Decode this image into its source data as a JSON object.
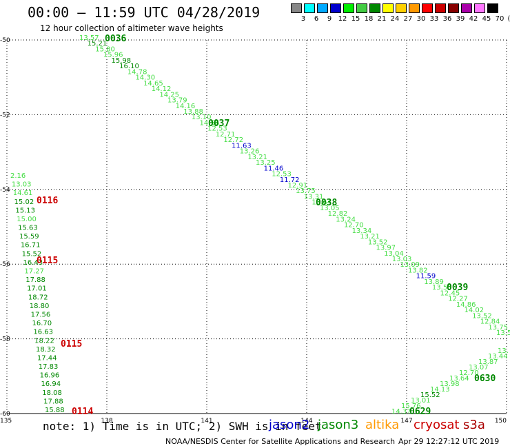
{
  "header": {
    "title": "00:00 — 11:59 UTC 04/28/2019",
    "subtitle": "12 hour collection of altimeter wave heights"
  },
  "legend": {
    "values": [
      "3",
      "6",
      "9",
      "12",
      "15",
      "18",
      "21",
      "24",
      "27",
      "30",
      "33",
      "36",
      "39",
      "42",
      "45",
      "70",
      "(ft)"
    ],
    "colors": [
      "#888888",
      "#00ffff",
      "#00aaff",
      "#0000cc",
      "#00ee00",
      "#44cc44",
      "#008800",
      "#ffff00",
      "#ffd000",
      "#ff9900",
      "#ff0000",
      "#cc0000",
      "#880000",
      "#aa00aa",
      "#ff77ff",
      "#000000"
    ]
  },
  "map": {
    "lon_ticks": [
      "135",
      "138",
      "141",
      "144",
      "147",
      "150"
    ],
    "lat_ticks": [
      "-50",
      "-52",
      "-54",
      "-56",
      "-58",
      "-60"
    ],
    "lon_range": [
      135,
      150
    ],
    "lat_range": [
      -50,
      -60
    ]
  },
  "colors": {
    "jason2": "#0000cc",
    "jason3": "#008800",
    "jason3_light": "#44dd44",
    "altika": "#ff9900",
    "cryosat": "#cc0000",
    "s3a": "#aa0000"
  },
  "tracks": [
    {
      "id": "0036",
      "points": [
        {
          "v": "13.57",
          "c": "jason3_light"
        },
        {
          "v": "15.21",
          "c": "jason3"
        },
        {
          "v": "15.80",
          "c": "jason3_light"
        },
        {
          "v": "15.96",
          "c": "jason3_light"
        },
        {
          "v": "15.98",
          "c": "jason3"
        },
        {
          "v": "16.10",
          "c": "jason3"
        },
        {
          "v": "14.78",
          "c": "jason3_light"
        },
        {
          "v": "14.30",
          "c": "jason3_light"
        },
        {
          "v": "14.65",
          "c": "jason3_light"
        },
        {
          "v": "14.12",
          "c": "jason3_light"
        },
        {
          "v": "14.25",
          "c": "jason3_light"
        },
        {
          "v": "13.79",
          "c": "jason3_light"
        },
        {
          "v": "14.16",
          "c": "jason3_light"
        },
        {
          "v": "13.88",
          "c": "jason3_light"
        },
        {
          "v": "13.10",
          "c": "jason3_light"
        },
        {
          "v": "14.56",
          "c": "jason3_light"
        },
        {
          "v": "12.53",
          "c": "jason3_light"
        },
        {
          "v": "12.71",
          "c": "jason3_light"
        },
        {
          "v": "12.72",
          "c": "jason3_light"
        },
        {
          "v": "11.63",
          "c": "jason2"
        },
        {
          "v": "13.26",
          "c": "jason3_light"
        },
        {
          "v": "13.21",
          "c": "jason3_light"
        },
        {
          "v": "13.25",
          "c": "jason3_light"
        },
        {
          "v": "11.46",
          "c": "jason2"
        },
        {
          "v": "12.53",
          "c": "jason3_light"
        },
        {
          "v": "11.72",
          "c": "jason2"
        },
        {
          "v": "12.91",
          "c": "jason3_light"
        },
        {
          "v": "13.75",
          "c": "jason3_light"
        },
        {
          "v": "13.31",
          "c": "jason3_light"
        },
        {
          "v": "13.64",
          "c": "jason3_light"
        },
        {
          "v": "13.05",
          "c": "jason3_light"
        },
        {
          "v": "12.82",
          "c": "jason3_light"
        },
        {
          "v": "13.24",
          "c": "jason3_light"
        },
        {
          "v": "12.70",
          "c": "jason3_light"
        },
        {
          "v": "13.34",
          "c": "jason3_light"
        },
        {
          "v": "13.21",
          "c": "jason3_light"
        },
        {
          "v": "13.52",
          "c": "jason3_light"
        },
        {
          "v": "13.97",
          "c": "jason3_light"
        },
        {
          "v": "13.04",
          "c": "jason3_light"
        },
        {
          "v": "13.03",
          "c": "jason3_light"
        },
        {
          "v": "13.09",
          "c": "jason3_light"
        },
        {
          "v": "13.82",
          "c": "jason3_light"
        },
        {
          "v": "11.59",
          "c": "jason2"
        },
        {
          "v": "13.89",
          "c": "jason3_light"
        },
        {
          "v": "13.55",
          "c": "jason3_light"
        },
        {
          "v": "12.45",
          "c": "jason3_light"
        },
        {
          "v": "12.27",
          "c": "jason3_light"
        },
        {
          "v": "14.86",
          "c": "jason3_light"
        },
        {
          "v": "14.02",
          "c": "jason3_light"
        },
        {
          "v": "13.52",
          "c": "jason3_light"
        },
        {
          "v": "12.84",
          "c": "jason3_light"
        },
        {
          "v": "13.75",
          "c": "jason3_light"
        },
        {
          "v": "13.5",
          "c": "jason3_light"
        }
      ]
    }
  ],
  "track_labels": [
    {
      "id": "0036",
      "c": "jason3"
    },
    {
      "id": "0037",
      "c": "jason3"
    },
    {
      "id": "0038",
      "c": "jason3"
    },
    {
      "id": "0039",
      "c": "jason3"
    },
    {
      "id": "0116",
      "c": "cryosat"
    },
    {
      "id": "0115",
      "c": "cryosat"
    },
    {
      "id": "0115",
      "c": "cryosat"
    },
    {
      "id": "0114",
      "c": "cryosat"
    },
    {
      "id": "0630",
      "c": "jason3"
    },
    {
      "id": "0629",
      "c": "jason3"
    }
  ],
  "left_track": [
    {
      "v": "2.16",
      "c": "jason3_light"
    },
    {
      "v": "13.03",
      "c": "jason3_light"
    },
    {
      "v": "14.61",
      "c": "jason3_light"
    },
    {
      "v": "15.02",
      "c": "jason3"
    },
    {
      "v": "15.13",
      "c": "jason3"
    },
    {
      "v": "15.00",
      "c": "jason3_light"
    },
    {
      "v": "15.63",
      "c": "jason3"
    },
    {
      "v": "15.59",
      "c": "jason3"
    },
    {
      "v": "16.71",
      "c": "jason3"
    },
    {
      "v": "15.52",
      "c": "jason3"
    },
    {
      "v": "16.43",
      "c": "jason3"
    },
    {
      "v": "17.27",
      "c": "jason3_light"
    },
    {
      "v": "17.88",
      "c": "jason3"
    },
    {
      "v": "17.01",
      "c": "jason3"
    },
    {
      "v": "18.72",
      "c": "jason3"
    },
    {
      "v": "18.80",
      "c": "jason3"
    },
    {
      "v": "17.56",
      "c": "jason3"
    },
    {
      "v": "16.70",
      "c": "jason3"
    },
    {
      "v": "16.63",
      "c": "jason3"
    },
    {
      "v": "18.22",
      "c": "jason3"
    },
    {
      "v": "18.32",
      "c": "jason3"
    },
    {
      "v": "17.44",
      "c": "jason3"
    },
    {
      "v": "17.83",
      "c": "jason3"
    },
    {
      "v": "16.96",
      "c": "jason3"
    },
    {
      "v": "16.94",
      "c": "jason3"
    },
    {
      "v": "18.08",
      "c": "jason3"
    },
    {
      "v": "17.88",
      "c": "jason3"
    },
    {
      "v": "15.88",
      "c": "jason3"
    }
  ],
  "right_track": [
    {
      "v": "13.",
      "c": "jason3_light"
    },
    {
      "v": "13.44",
      "c": "jason3_light"
    },
    {
      "v": "13.87",
      "c": "jason3_light"
    },
    {
      "v": "13.07",
      "c": "jason3_light"
    },
    {
      "v": "12.70",
      "c": "jason3_light"
    },
    {
      "v": "13.64",
      "c": "jason3_light"
    },
    {
      "v": "13.98",
      "c": "jason3_light"
    },
    {
      "v": "14.13",
      "c": "jason3_light"
    },
    {
      "v": "15.52",
      "c": "jason3"
    },
    {
      "v": "13.01",
      "c": "jason3_light"
    },
    {
      "v": "15.76",
      "c": "jason3_light"
    },
    {
      "v": "14.37",
      "c": "jason3_light"
    }
  ],
  "footer": {
    "note": "note: 1) Time is in UTC; 2) SWH is in feet",
    "sat_jason2": "jason2",
    "sat_jason3": "jason3",
    "sat_altika": "altika",
    "sat_cryosat": "cryosat",
    "sat_s3a": "s3a",
    "credit": "NOAA/NESDIS Center for Satellite Applications and Research",
    "timestamp": "Apr 29 12:27:12 UTC 2019"
  }
}
